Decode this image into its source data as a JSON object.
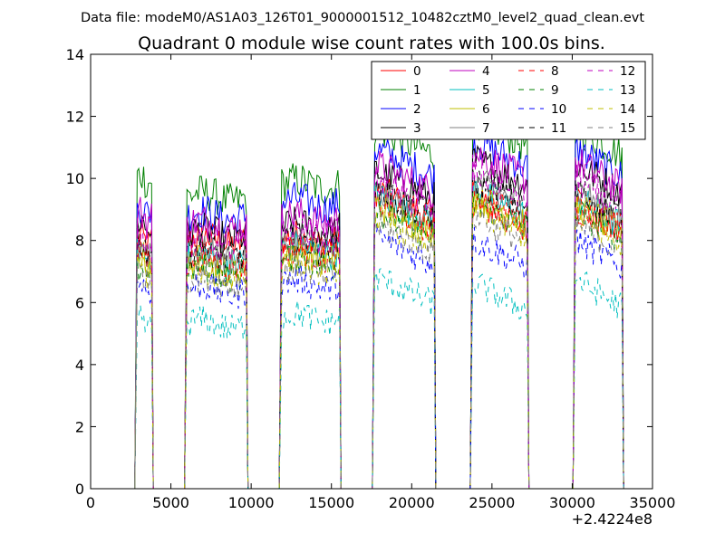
{
  "chart_data": {
    "type": "line",
    "suptitle": "Data file: modeM0/AS1A03_126T01_9000001512_10482cztM0_level2_quad_clean.evt",
    "title": "Quadrant 0 module wise count rates with 100.0s bins.",
    "xlabel": "",
    "ylabel": "",
    "xlim": [
      0,
      35000
    ],
    "ylim": [
      0,
      14
    ],
    "x_offset_label": "+2.4224e8",
    "xticks": [
      0,
      5000,
      10000,
      15000,
      20000,
      25000,
      30000,
      35000
    ],
    "xtick_labels": [
      "0",
      "5000",
      "10000",
      "15000",
      "20000",
      "25000",
      "30000",
      "35000"
    ],
    "yticks": [
      0,
      2,
      4,
      6,
      8,
      10,
      12,
      14
    ],
    "ytick_labels": [
      "0",
      "2",
      "4",
      "6",
      "8",
      "10",
      "12",
      "14"
    ],
    "legend_position": "top-right",
    "segments": [
      {
        "start": 2900,
        "end": 3800
      },
      {
        "start": 6000,
        "end": 9700
      },
      {
        "start": 11900,
        "end": 15500
      },
      {
        "start": 17700,
        "end": 21400
      },
      {
        "start": 23800,
        "end": 27200
      },
      {
        "start": 30200,
        "end": 33100
      }
    ],
    "series": [
      {
        "name": "0",
        "color": "#ff0000",
        "dash": "solid",
        "levels": [
          8.0,
          8.0,
          8.0,
          9.0,
          8.6,
          8.4
        ]
      },
      {
        "name": "1",
        "color": "#008000",
        "dash": "solid",
        "levels": [
          10.0,
          9.4,
          9.8,
          11.0,
          11.3,
          11.0
        ]
      },
      {
        "name": "2",
        "color": "#0000ff",
        "dash": "solid",
        "levels": [
          9.0,
          8.8,
          9.2,
          10.3,
          10.6,
          10.3
        ]
      },
      {
        "name": "3",
        "color": "#000000",
        "dash": "solid",
        "levels": [
          8.5,
          8.2,
          8.4,
          9.6,
          10.0,
          9.8
        ]
      },
      {
        "name": "4",
        "color": "#bf00bf",
        "dash": "solid",
        "levels": [
          8.8,
          8.5,
          8.7,
          9.8,
          10.2,
          9.9
        ]
      },
      {
        "name": "5",
        "color": "#00bfbf",
        "dash": "solid",
        "levels": [
          7.6,
          7.4,
          7.7,
          8.8,
          9.0,
          8.7
        ]
      },
      {
        "name": "6",
        "color": "#bfbf00",
        "dash": "solid",
        "levels": [
          7.4,
          7.2,
          7.5,
          8.5,
          8.8,
          8.5
        ]
      },
      {
        "name": "7",
        "color": "#808080",
        "dash": "solid",
        "levels": [
          7.8,
          7.5,
          7.8,
          8.9,
          9.3,
          9.0
        ]
      },
      {
        "name": "8",
        "color": "#ff0000",
        "dash": "dashed",
        "levels": [
          7.5,
          7.3,
          7.6,
          8.6,
          8.9,
          8.6
        ]
      },
      {
        "name": "9",
        "color": "#008000",
        "dash": "dashed",
        "levels": [
          7.0,
          7.0,
          7.3,
          8.3,
          8.6,
          8.3
        ]
      },
      {
        "name": "10",
        "color": "#0000ff",
        "dash": "dashed",
        "levels": [
          6.5,
          6.4,
          6.6,
          7.5,
          7.4,
          7.4
        ]
      },
      {
        "name": "11",
        "color": "#000000",
        "dash": "dashed",
        "levels": [
          7.8,
          7.6,
          7.9,
          9.0,
          9.3,
          9.0
        ]
      },
      {
        "name": "12",
        "color": "#bf00bf",
        "dash": "dashed",
        "levels": [
          8.2,
          7.9,
          8.2,
          9.2,
          9.6,
          9.3
        ]
      },
      {
        "name": "13",
        "color": "#00bfbf",
        "dash": "dashed",
        "levels": [
          5.3,
          5.3,
          5.5,
          6.2,
          6.0,
          6.1
        ]
      },
      {
        "name": "14",
        "color": "#bfbf00",
        "dash": "dashed",
        "levels": [
          7.1,
          6.9,
          7.2,
          8.1,
          8.4,
          8.1
        ]
      },
      {
        "name": "15",
        "color": "#808080",
        "dash": "dashed",
        "levels": [
          6.9,
          6.7,
          7.0,
          7.9,
          8.2,
          7.9
        ]
      }
    ]
  }
}
